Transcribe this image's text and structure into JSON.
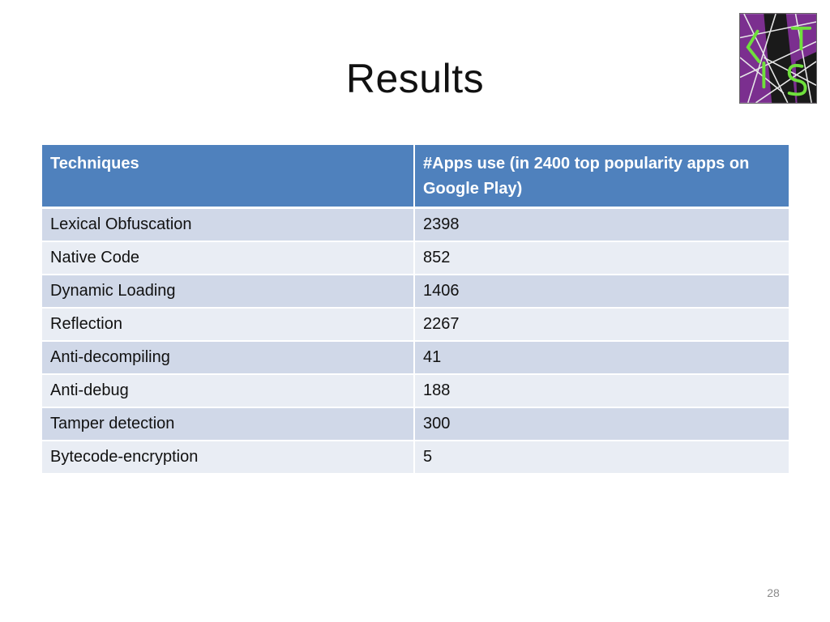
{
  "slide": {
    "title": "Results",
    "page_number": "28"
  },
  "logo": {
    "icon": "lis-logo",
    "text": "LIS",
    "colors": {
      "background": "#7b2f8f",
      "letters": "#6fe03c",
      "lines": "#e8e8e8",
      "dark": "#1a1a1a"
    }
  },
  "table": {
    "headers": {
      "techniques": "Techniques",
      "apps": "#Apps use (in 2400 top popularity apps on Google Play)"
    },
    "rows": [
      {
        "technique": "Lexical Obfuscation",
        "apps": "2398"
      },
      {
        "technique": "Native Code",
        "apps": "852"
      },
      {
        "technique": "Dynamic Loading",
        "apps": "1406"
      },
      {
        "technique": "Reflection",
        "apps": "2267"
      },
      {
        "technique": "Anti-decompiling",
        "apps": "41"
      },
      {
        "technique": "Anti-debug",
        "apps": "188"
      },
      {
        "technique": "Tamper detection",
        "apps": "300"
      },
      {
        "technique": "Bytecode-encryption",
        "apps": "5"
      }
    ],
    "colors": {
      "header": "#4f81bd",
      "row_odd": "#d0d8e8",
      "row_even": "#e9edf4"
    }
  }
}
